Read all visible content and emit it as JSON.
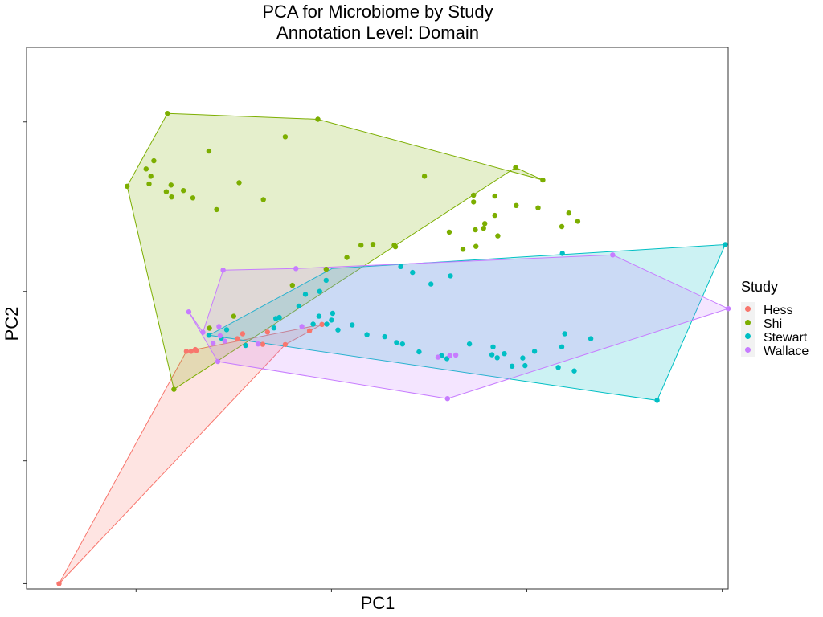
{
  "chart_data": {
    "type": "scatter",
    "title": "PCA for Microbiome by Study",
    "subtitle": "Annotation Level: Domain",
    "xlabel": "PC1",
    "ylabel": "PC2",
    "xlim": [
      -0.185,
      1.0
    ],
    "ylim": [
      -1.018,
      0.835
    ],
    "x_ticks": [
      0.0,
      0.33,
      0.66,
      0.99
    ],
    "y_ticks": [
      -1.0,
      -0.58,
      0.0,
      0.58
    ],
    "show_tick_labels": false,
    "grid": false,
    "legend": {
      "title": "Study",
      "position": "right"
    },
    "hulls": true,
    "series": [
      {
        "name": "Hess",
        "color": "#F8766D",
        "points": [
          [
            -0.13,
            -1.0
          ],
          [
            0.102,
            -0.202
          ],
          [
            0.1,
            -0.199
          ],
          [
            0.093,
            -0.205
          ],
          [
            0.085,
            -0.205
          ],
          [
            0.171,
            -0.162
          ],
          [
            0.18,
            -0.145
          ],
          [
            0.214,
            -0.181
          ],
          [
            0.222,
            -0.139
          ],
          [
            0.252,
            -0.182
          ],
          [
            0.293,
            -0.135
          ],
          [
            0.314,
            -0.113
          ]
        ],
        "hull": [
          [
            -0.13,
            -1.0
          ],
          [
            0.085,
            -0.205
          ],
          [
            0.314,
            -0.113
          ],
          [
            0.252,
            -0.182
          ]
        ]
      },
      {
        "name": "Shi",
        "color": "#7CAE00",
        "points": [
          [
            0.053,
            0.609
          ],
          [
            0.307,
            0.589
          ],
          [
            0.487,
            0.394
          ],
          [
            0.252,
            0.529
          ],
          [
            0.123,
            0.48
          ],
          [
            0.03,
            0.447
          ],
          [
            0.025,
            0.394
          ],
          [
            0.017,
            0.419
          ],
          [
            0.022,
            0.368
          ],
          [
            0.059,
            0.364
          ],
          [
            0.08,
            0.345
          ],
          [
            0.051,
            0.341
          ],
          [
            0.06,
            0.323
          ],
          [
            -0.015,
            0.36
          ],
          [
            0.096,
            0.32
          ],
          [
            0.174,
            0.372
          ],
          [
            0.215,
            0.314
          ],
          [
            0.136,
            0.28
          ],
          [
            0.641,
            0.424
          ],
          [
            0.687,
            0.381
          ],
          [
            0.606,
            0.326
          ],
          [
            0.57,
            0.329
          ],
          [
            0.57,
            0.306
          ],
          [
            0.642,
            0.294
          ],
          [
            0.679,
            0.286
          ],
          [
            0.731,
            0.268
          ],
          [
            0.746,
            0.24
          ],
          [
            0.719,
            0.222
          ],
          [
            0.573,
            0.211
          ],
          [
            0.587,
            0.216
          ],
          [
            0.589,
            0.232
          ],
          [
            0.606,
            0.26
          ],
          [
            0.529,
            0.203
          ],
          [
            0.552,
            0.144
          ],
          [
            0.574,
            0.154
          ],
          [
            0.611,
            0.19
          ],
          [
            0.438,
            0.153
          ],
          [
            0.4,
            0.161
          ],
          [
            0.38,
            0.158
          ],
          [
            0.436,
            0.158
          ],
          [
            0.356,
            0.116
          ],
          [
            0.321,
            0.076
          ],
          [
            0.264,
            0.021
          ],
          [
            0.165,
            -0.085
          ],
          [
            0.124,
            -0.126
          ],
          [
            0.064,
            -0.335
          ]
        ],
        "hull": [
          [
            0.053,
            0.609
          ],
          [
            0.307,
            0.589
          ],
          [
            0.687,
            0.381
          ],
          [
            0.641,
            0.424
          ],
          [
            0.064,
            -0.335
          ],
          [
            -0.015,
            0.36
          ]
        ]
      },
      {
        "name": "Stewart",
        "color": "#00BFC4",
        "points": [
          [
            0.995,
            0.16
          ],
          [
            0.72,
            0.13
          ],
          [
            0.531,
            0.053
          ],
          [
            0.498,
            0.025
          ],
          [
            0.447,
            0.085
          ],
          [
            0.467,
            0.065
          ],
          [
            0.321,
            0.038
          ],
          [
            0.31,
            0.0
          ],
          [
            0.286,
            -0.01
          ],
          [
            0.275,
            -0.05
          ],
          [
            0.309,
            -0.085
          ],
          [
            0.299,
            -0.112
          ],
          [
            0.322,
            -0.112
          ],
          [
            0.33,
            -0.098
          ],
          [
            0.332,
            -0.075
          ],
          [
            0.365,
            -0.115
          ],
          [
            0.341,
            -0.132
          ],
          [
            0.39,
            -0.148
          ],
          [
            0.42,
            -0.155
          ],
          [
            0.44,
            -0.175
          ],
          [
            0.45,
            -0.18
          ],
          [
            0.478,
            -0.207
          ],
          [
            0.516,
            -0.22
          ],
          [
            0.525,
            -0.23
          ],
          [
            0.563,
            -0.18
          ],
          [
            0.603,
            -0.19
          ],
          [
            0.601,
            -0.217
          ],
          [
            0.61,
            -0.227
          ],
          [
            0.673,
            -0.205
          ],
          [
            0.719,
            -0.19
          ],
          [
            0.768,
            -0.162
          ],
          [
            0.724,
            -0.145
          ],
          [
            0.622,
            -0.213
          ],
          [
            0.653,
            -0.228
          ],
          [
            0.635,
            -0.256
          ],
          [
            0.657,
            -0.254
          ],
          [
            0.713,
            -0.26
          ],
          [
            0.236,
            -0.093
          ],
          [
            0.242,
            -0.089
          ],
          [
            0.233,
            -0.125
          ],
          [
            0.123,
            -0.15
          ],
          [
            0.153,
            -0.131
          ],
          [
            0.185,
            -0.185
          ],
          [
            0.144,
            -0.16
          ],
          [
            0.88,
            -0.373
          ],
          [
            0.74,
            -0.272
          ]
        ],
        "hull": [
          [
            0.331,
            0.078
          ],
          [
            0.995,
            0.16
          ],
          [
            0.88,
            -0.373
          ],
          [
            0.123,
            -0.15
          ]
        ]
      },
      {
        "name": "Wallace",
        "color": "#C77CFF",
        "points": [
          [
            0.147,
            0.073
          ],
          [
            0.27,
            0.078
          ],
          [
            0.805,
            0.125
          ],
          [
            1.0,
            -0.059
          ],
          [
            0.089,
            -0.07
          ],
          [
            0.113,
            -0.14
          ],
          [
            0.14,
            -0.12
          ],
          [
            0.142,
            -0.152
          ],
          [
            0.13,
            -0.178
          ],
          [
            0.15,
            -0.17
          ],
          [
            0.206,
            -0.18
          ],
          [
            0.28,
            -0.12
          ],
          [
            0.51,
            -0.225
          ],
          [
            0.54,
            -0.218
          ],
          [
            0.53,
            -0.22
          ],
          [
            0.138,
            -0.24
          ],
          [
            0.526,
            -0.367
          ]
        ],
        "hull": [
          [
            0.147,
            0.073
          ],
          [
            0.27,
            0.078
          ],
          [
            0.805,
            0.125
          ],
          [
            1.0,
            -0.059
          ],
          [
            0.526,
            -0.367
          ],
          [
            0.138,
            -0.24
          ],
          [
            0.089,
            -0.07
          ],
          [
            0.113,
            -0.14
          ]
        ]
      }
    ]
  }
}
